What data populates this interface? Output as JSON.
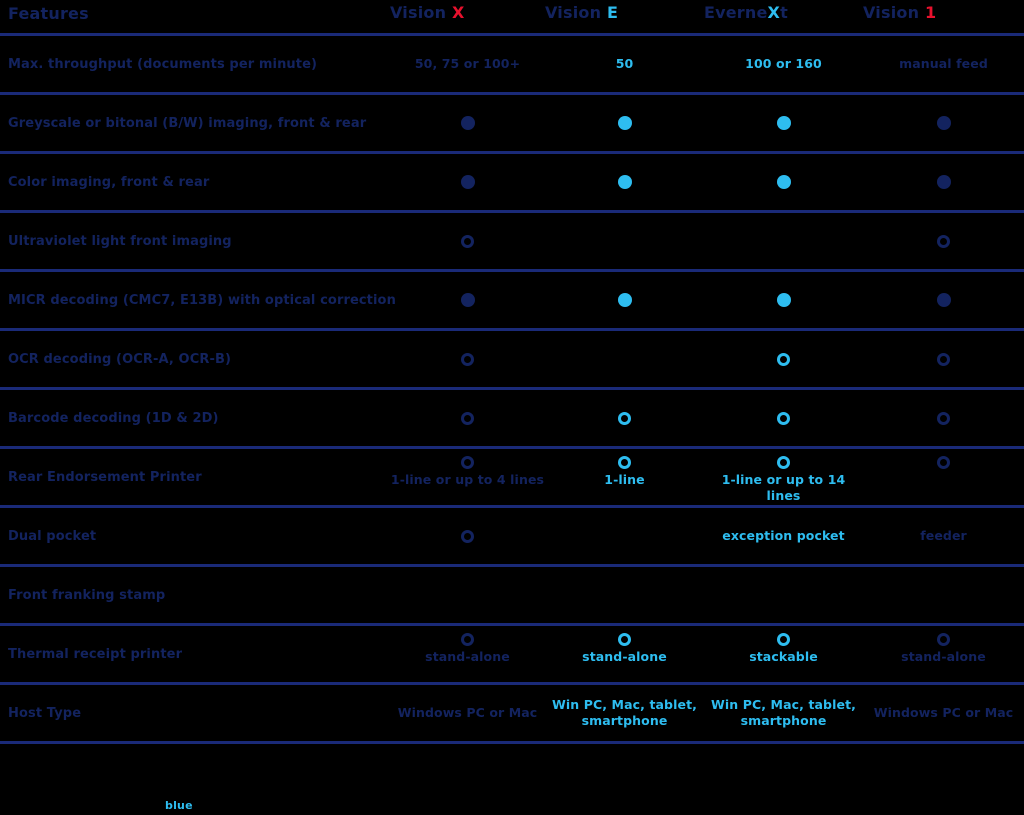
{
  "palette": {
    "navy": "#13235F",
    "cyan": "#2EBDF0",
    "red": "#E8112D",
    "line": "#1A2A78",
    "background": "#000000"
  },
  "header": {
    "features_label": "Features",
    "products": [
      {
        "prefix": "Vision ",
        "accent": "X",
        "suffix": "",
        "accent_color": "red"
      },
      {
        "prefix": "Vision ",
        "accent": "E",
        "suffix": "",
        "accent_color": "cyan"
      },
      {
        "prefix": "Everne",
        "accent": "X",
        "suffix": "t",
        "accent_color": "cyan"
      },
      {
        "prefix": "Vision ",
        "accent": "1",
        "suffix": "",
        "accent_color": "red"
      }
    ]
  },
  "rows": [
    {
      "label": "Max. throughput (documents per minute)",
      "cells": [
        {
          "type": "text",
          "text": "50, 75 or 100+",
          "color": "navy"
        },
        {
          "type": "text",
          "text": "50",
          "color": "cyan"
        },
        {
          "type": "text",
          "text": "100 or 160",
          "color": "cyan"
        },
        {
          "type": "text",
          "text": "manual feed",
          "color": "navy"
        }
      ]
    },
    {
      "label": "Greyscale or bitonal (B/W) imaging, front & rear",
      "cells": [
        {
          "type": "dot_filled",
          "color": "navy"
        },
        {
          "type": "dot_filled",
          "color": "cyan"
        },
        {
          "type": "dot_filled",
          "color": "cyan"
        },
        {
          "type": "dot_filled",
          "color": "navy"
        }
      ]
    },
    {
      "label": "Color imaging, front & rear",
      "cells": [
        {
          "type": "dot_filled",
          "color": "navy"
        },
        {
          "type": "dot_filled",
          "color": "cyan"
        },
        {
          "type": "dot_filled",
          "color": "cyan"
        },
        {
          "type": "dot_filled",
          "color": "navy"
        }
      ]
    },
    {
      "label": "Ultraviolet light front imaging",
      "cells": [
        {
          "type": "dot_open",
          "color": "navy"
        },
        {
          "type": "empty"
        },
        {
          "type": "empty"
        },
        {
          "type": "dot_open",
          "color": "navy"
        }
      ]
    },
    {
      "label": "MICR decoding (CMC7, E13B) with optical correction",
      "cells": [
        {
          "type": "dot_filled",
          "color": "navy"
        },
        {
          "type": "dot_filled",
          "color": "cyan"
        },
        {
          "type": "dot_filled",
          "color": "cyan"
        },
        {
          "type": "dot_filled",
          "color": "navy"
        }
      ]
    },
    {
      "label": "OCR decoding (OCR-A, OCR-B)",
      "cells": [
        {
          "type": "dot_open",
          "color": "navy"
        },
        {
          "type": "empty"
        },
        {
          "type": "dot_open",
          "color": "cyan"
        },
        {
          "type": "dot_open",
          "color": "navy"
        }
      ]
    },
    {
      "label": "Barcode decoding (1D & 2D)",
      "cells": [
        {
          "type": "dot_open",
          "color": "navy"
        },
        {
          "type": "dot_open",
          "color": "cyan"
        },
        {
          "type": "dot_open",
          "color": "cyan"
        },
        {
          "type": "dot_open",
          "color": "navy"
        }
      ]
    },
    {
      "label": "Rear Endorsement Printer",
      "cells": [
        {
          "type": "dot_open",
          "color": "navy",
          "caption": "1-line or up to 4 lines"
        },
        {
          "type": "dot_open",
          "color": "cyan",
          "caption": "1-line"
        },
        {
          "type": "dot_open",
          "color": "cyan",
          "caption": "1-line or up to 14 lines"
        },
        {
          "type": "dot_open",
          "color": "navy"
        }
      ]
    },
    {
      "label": "Dual pocket",
      "cells": [
        {
          "type": "dot_open",
          "color": "navy"
        },
        {
          "type": "empty"
        },
        {
          "type": "text",
          "text": "exception pocket",
          "color": "cyan"
        },
        {
          "type": "text",
          "text": "feeder",
          "color": "navy"
        }
      ]
    },
    {
      "label": "Front franking stamp",
      "cells": [
        {
          "type": "empty"
        },
        {
          "type": "empty"
        },
        {
          "type": "empty"
        },
        {
          "type": "empty"
        }
      ]
    },
    {
      "label": "Thermal receipt printer",
      "cells": [
        {
          "type": "dot_open",
          "color": "navy",
          "caption": "stand-alone"
        },
        {
          "type": "dot_open",
          "color": "cyan",
          "caption": "stand-alone"
        },
        {
          "type": "dot_open",
          "color": "cyan",
          "caption": "stackable"
        },
        {
          "type": "dot_open",
          "color": "navy",
          "caption": "stand-alone"
        }
      ]
    },
    {
      "label": "Host Type",
      "cells": [
        {
          "type": "text",
          "text": "Windows PC or Mac",
          "color": "navy"
        },
        {
          "type": "text",
          "text": "Win PC, Mac, tablet, smartphone",
          "color": "cyan"
        },
        {
          "type": "text",
          "text": "Win PC, Mac, tablet, smartphone",
          "color": "cyan"
        },
        {
          "type": "text",
          "text": "Windows PC or Mac",
          "color": "navy"
        }
      ]
    }
  ],
  "footer": {
    "text": "blue"
  }
}
